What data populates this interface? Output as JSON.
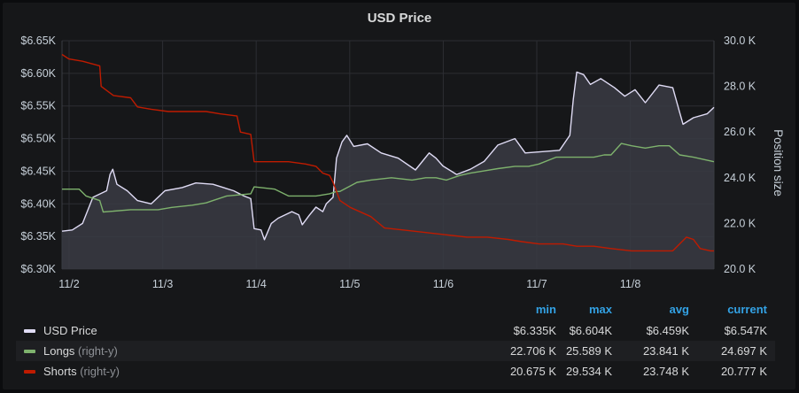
{
  "panel": {
    "title": "USD Price"
  },
  "chart_data": {
    "type": "line",
    "title": "USD Price",
    "x_ticks": [
      "11/2",
      "11/3",
      "11/4",
      "11/5",
      "11/6",
      "11/7",
      "11/8"
    ],
    "y_left": {
      "ticks": [
        "$6.30K",
        "$6.35K",
        "$6.40K",
        "$6.45K",
        "$6.50K",
        "$6.55K",
        "$6.60K",
        "$6.65K"
      ],
      "range": [
        6300,
        6650
      ]
    },
    "y_right": {
      "label": "Position size",
      "ticks": [
        "20.0 K",
        "22.0 K",
        "24.0 K",
        "26.0 K",
        "28.0 K",
        "30.0 K"
      ],
      "range": [
        20000,
        30000
      ]
    },
    "x_range_days": [
      0,
      6.95
    ],
    "series": [
      {
        "name": "USD Price",
        "axis": "left",
        "color": "#e0dcf5",
        "fill": true,
        "points": [
          [
            0,
            6358
          ],
          [
            0.15,
            6360
          ],
          [
            0.3,
            6370
          ],
          [
            0.45,
            6410
          ],
          [
            0.65,
            6420
          ],
          [
            0.7,
            6445
          ],
          [
            0.74,
            6453
          ],
          [
            0.8,
            6430
          ],
          [
            0.95,
            6420
          ],
          [
            1.1,
            6405
          ],
          [
            1.3,
            6400
          ],
          [
            1.5,
            6420
          ],
          [
            1.75,
            6425
          ],
          [
            1.95,
            6432
          ],
          [
            2.2,
            6430
          ],
          [
            2.5,
            6420
          ],
          [
            2.65,
            6412
          ],
          [
            2.75,
            6408
          ],
          [
            2.8,
            6362
          ],
          [
            2.9,
            6360
          ],
          [
            2.95,
            6345
          ],
          [
            3.05,
            6370
          ],
          [
            3.15,
            6378
          ],
          [
            3.35,
            6388
          ],
          [
            3.45,
            6383
          ],
          [
            3.5,
            6368
          ],
          [
            3.6,
            6382
          ],
          [
            3.7,
            6395
          ],
          [
            3.8,
            6388
          ],
          [
            3.85,
            6400
          ],
          [
            3.95,
            6410
          ],
          [
            4.0,
            6470
          ],
          [
            4.08,
            6495
          ],
          [
            4.15,
            6505
          ],
          [
            4.25,
            6488
          ],
          [
            4.45,
            6492
          ],
          [
            4.65,
            6478
          ],
          [
            4.9,
            6470
          ],
          [
            5.15,
            6452
          ],
          [
            5.35,
            6478
          ],
          [
            5.45,
            6470
          ],
          [
            5.55,
            6458
          ],
          [
            5.75,
            6445
          ],
          [
            5.95,
            6453
          ],
          [
            6.15,
            6465
          ],
          [
            6.35,
            6490
          ],
          [
            6.6,
            6500
          ],
          [
            6.75,
            6478
          ],
          [
            7.25,
            6482
          ],
          [
            7.4,
            6505
          ],
          [
            7.45,
            6560
          ],
          [
            7.5,
            6602
          ],
          [
            7.6,
            6598
          ],
          [
            7.7,
            6583
          ],
          [
            7.85,
            6592
          ],
          [
            8.05,
            6578
          ],
          [
            8.2,
            6565
          ],
          [
            8.35,
            6575
          ],
          [
            8.5,
            6555
          ],
          [
            8.7,
            6582
          ],
          [
            8.9,
            6578
          ],
          [
            9.0,
            6540
          ],
          [
            9.05,
            6522
          ],
          [
            9.2,
            6532
          ],
          [
            9.4,
            6538
          ],
          [
            9.5,
            6548
          ]
        ]
      },
      {
        "name": "Longs",
        "axis": "right",
        "color": "#7eb26d",
        "points": [
          [
            0,
            23.5
          ],
          [
            0.25,
            23.5
          ],
          [
            0.35,
            23.2
          ],
          [
            0.55,
            23.0
          ],
          [
            0.6,
            22.5
          ],
          [
            1.0,
            22.6
          ],
          [
            1.4,
            22.6
          ],
          [
            1.6,
            22.7
          ],
          [
            1.9,
            22.8
          ],
          [
            2.1,
            22.9
          ],
          [
            2.2,
            23.0
          ],
          [
            2.4,
            23.2
          ],
          [
            2.75,
            23.3
          ],
          [
            2.8,
            23.6
          ],
          [
            3.1,
            23.5
          ],
          [
            3.3,
            23.2
          ],
          [
            3.7,
            23.2
          ],
          [
            3.9,
            23.3
          ],
          [
            4.0,
            23.4
          ],
          [
            4.05,
            23.4
          ],
          [
            4.3,
            23.8
          ],
          [
            4.5,
            23.9
          ],
          [
            4.8,
            24.0
          ],
          [
            5.1,
            23.9
          ],
          [
            5.3,
            24.0
          ],
          [
            5.45,
            24.0
          ],
          [
            5.6,
            23.9
          ],
          [
            5.8,
            24.1
          ],
          [
            5.95,
            24.2
          ],
          [
            6.15,
            24.3
          ],
          [
            6.35,
            24.4
          ],
          [
            6.6,
            24.5
          ],
          [
            6.8,
            24.5
          ],
          [
            6.95,
            24.6
          ],
          [
            7.2,
            24.9
          ],
          [
            7.5,
            24.9
          ],
          [
            7.75,
            24.9
          ],
          [
            7.9,
            25.0
          ],
          [
            8.0,
            25.0
          ],
          [
            8.15,
            25.5
          ],
          [
            8.3,
            25.4
          ],
          [
            8.5,
            25.3
          ],
          [
            8.7,
            25.4
          ],
          [
            8.85,
            25.4
          ],
          [
            9.0,
            25.0
          ],
          [
            9.2,
            24.9
          ],
          [
            9.5,
            24.7
          ]
        ]
      },
      {
        "name": "Shorts",
        "axis": "right",
        "color": "#bf1b00",
        "points": [
          [
            0,
            29.4
          ],
          [
            0.1,
            29.2
          ],
          [
            0.3,
            29.1
          ],
          [
            0.55,
            28.9
          ],
          [
            0.57,
            28.0
          ],
          [
            0.75,
            27.6
          ],
          [
            1.0,
            27.5
          ],
          [
            1.1,
            27.1
          ],
          [
            1.3,
            27.0
          ],
          [
            1.55,
            26.9
          ],
          [
            1.8,
            26.9
          ],
          [
            2.1,
            26.9
          ],
          [
            2.3,
            26.8
          ],
          [
            2.55,
            26.7
          ],
          [
            2.6,
            26.0
          ],
          [
            2.75,
            25.9
          ],
          [
            2.8,
            24.7
          ],
          [
            3.1,
            24.7
          ],
          [
            3.3,
            24.7
          ],
          [
            3.55,
            24.6
          ],
          [
            3.7,
            24.5
          ],
          [
            3.8,
            24.2
          ],
          [
            3.9,
            24.1
          ],
          [
            3.95,
            23.8
          ],
          [
            4.05,
            23.0
          ],
          [
            4.2,
            22.7
          ],
          [
            4.5,
            22.3
          ],
          [
            4.7,
            21.8
          ],
          [
            5.0,
            21.7
          ],
          [
            5.3,
            21.6
          ],
          [
            5.6,
            21.5
          ],
          [
            5.9,
            21.4
          ],
          [
            6.2,
            21.4
          ],
          [
            6.5,
            21.3
          ],
          [
            6.7,
            21.2
          ],
          [
            6.95,
            21.1
          ],
          [
            7.1,
            21.1
          ],
          [
            7.3,
            21.1
          ],
          [
            7.5,
            21.0
          ],
          [
            7.75,
            21.0
          ],
          [
            8.0,
            20.9
          ],
          [
            8.3,
            20.8
          ],
          [
            8.6,
            20.8
          ],
          [
            8.9,
            20.8
          ],
          [
            9.1,
            21.4
          ],
          [
            9.2,
            21.3
          ],
          [
            9.3,
            20.9
          ],
          [
            9.45,
            20.8
          ],
          [
            9.5,
            20.8
          ]
        ]
      }
    ]
  },
  "legend": {
    "headers": {
      "min": "min",
      "max": "max",
      "avg": "avg",
      "current": "current"
    },
    "rows": [
      {
        "name": "USD Price",
        "axis_note": "",
        "color": "#e0dcf5",
        "min": "$6.335K",
        "max": "$6.604K",
        "avg": "$6.459K",
        "current": "$6.547K"
      },
      {
        "name": "Longs",
        "axis_note": "(right-y)",
        "color": "#7eb26d",
        "min": "22.706 K",
        "max": "25.589 K",
        "avg": "23.841 K",
        "current": "24.697 K"
      },
      {
        "name": "Shorts",
        "axis_note": "(right-y)",
        "color": "#bf1b00",
        "min": "20.675 K",
        "max": "29.534 K",
        "avg": "23.748 K",
        "current": "20.777 K"
      }
    ]
  }
}
